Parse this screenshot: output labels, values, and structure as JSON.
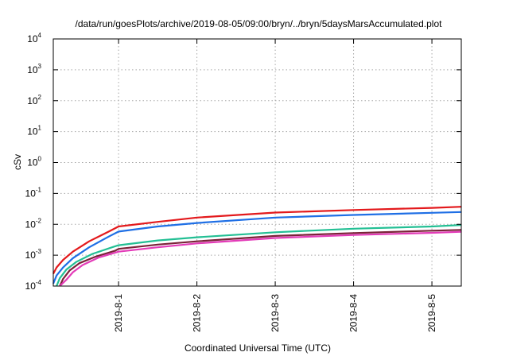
{
  "chart_data": {
    "type": "line",
    "title": "/data/run/goesPlots/archive/2019-08-05/09:00/bryn/../bryn/5daysMarsAccumulated.plot",
    "xlabel": "Coordinated Universal Time (UTC)",
    "ylabel": "cSv",
    "x_ticks": [
      "2019-8-1",
      "2019-8-2",
      "2019-8-3",
      "2019-8-4",
      "2019-8-5"
    ],
    "xlim": [
      "2019-07-31 04:00",
      "2019-08-05 09:00"
    ],
    "y_scale": "log",
    "ylim": [
      0.0001,
      10000
    ],
    "y_tick_base": "10",
    "y_tick_exponents": [
      "-4",
      "-3",
      "-2",
      "-1",
      "0",
      "1",
      "2",
      "3",
      "4"
    ],
    "grid": true,
    "legend": "none",
    "series": [
      {
        "color": "#e3191c",
        "x": [
          "2019-07-31 04:00",
          "2019-07-31 05:00",
          "2019-07-31 07:00",
          "2019-07-31 10:00",
          "2019-07-31 15:00",
          "2019-07-31 21:00",
          "2019-08-01 00:00",
          "2019-08-01 12:00",
          "2019-08-02 00:00",
          "2019-08-03 00:00",
          "2019-08-04 00:00",
          "2019-08-05 00:00",
          "2019-08-05 09:00"
        ],
        "values": [
          0.00025,
          0.0004,
          0.0007,
          0.0013,
          0.0028,
          0.0058,
          0.0085,
          0.012,
          0.0165,
          0.024,
          0.029,
          0.034,
          0.037
        ]
      },
      {
        "color": "#1f6fe5",
        "x": [
          "2019-07-31 04:00",
          "2019-07-31 05:00",
          "2019-07-31 07:00",
          "2019-07-31 10:00",
          "2019-07-31 15:00",
          "2019-07-31 21:00",
          "2019-08-01 00:00",
          "2019-08-01 12:00",
          "2019-08-02 00:00",
          "2019-08-03 00:00",
          "2019-08-04 00:00",
          "2019-08-05 00:00",
          "2019-08-05 09:00"
        ],
        "values": [
          0.00012,
          0.00022,
          0.0004,
          0.0008,
          0.0018,
          0.004,
          0.0058,
          0.0085,
          0.011,
          0.0165,
          0.02,
          0.0235,
          0.025
        ]
      },
      {
        "color": "#23bf94",
        "x": [
          "2019-07-31 05:00",
          "2019-07-31 06:00",
          "2019-07-31 08:00",
          "2019-07-31 11:00",
          "2019-07-31 16:00",
          "2019-07-31 22:00",
          "2019-08-01 00:00",
          "2019-08-01 12:00",
          "2019-08-02 00:00",
          "2019-08-03 00:00",
          "2019-08-04 00:00",
          "2019-08-05 00:00",
          "2019-08-05 09:00"
        ],
        "values": [
          0.0001,
          0.00018,
          0.00034,
          0.0006,
          0.0011,
          0.0018,
          0.0021,
          0.003,
          0.0038,
          0.0055,
          0.0072,
          0.0085,
          0.0095
        ]
      },
      {
        "color": "#7a2238",
        "x": [
          "2019-07-31 06:00",
          "2019-07-31 07:00",
          "2019-07-31 09:00",
          "2019-07-31 12:00",
          "2019-07-31 17:00",
          "2019-07-31 23:00",
          "2019-08-01 00:00",
          "2019-08-01 12:00",
          "2019-08-02 00:00",
          "2019-08-03 00:00",
          "2019-08-04 00:00",
          "2019-08-05 00:00",
          "2019-08-05 09:00"
        ],
        "values": [
          0.0001,
          0.00017,
          0.00032,
          0.00055,
          0.0009,
          0.0014,
          0.0016,
          0.0022,
          0.0028,
          0.0042,
          0.0052,
          0.0062,
          0.0066
        ]
      },
      {
        "color": "#e33bb8",
        "x": [
          "2019-07-31 06:00",
          "2019-07-31 08:00",
          "2019-07-31 10:00",
          "2019-07-31 13:00",
          "2019-07-31 18:00",
          "2019-08-01 00:00",
          "2019-08-01 12:00",
          "2019-08-02 00:00",
          "2019-08-03 00:00",
          "2019-08-04 00:00",
          "2019-08-05 00:00",
          "2019-08-05 09:00"
        ],
        "values": [
          0.0001,
          0.00016,
          0.00028,
          0.00048,
          0.00085,
          0.0013,
          0.0018,
          0.0024,
          0.0036,
          0.0045,
          0.0053,
          0.0057
        ]
      }
    ]
  }
}
